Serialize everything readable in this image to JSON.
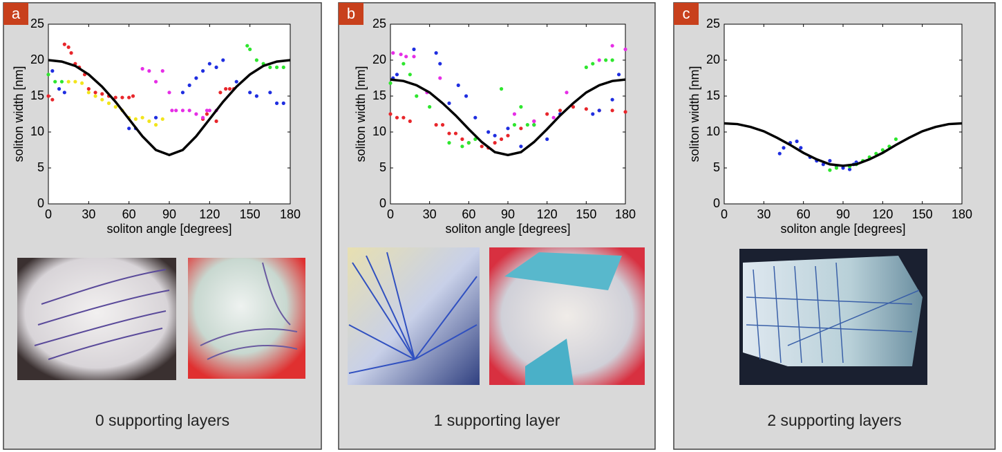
{
  "chart_data": [
    {
      "type": "scatter",
      "panel_label": "a",
      "caption": "0 supporting layers",
      "xlabel": "soliton angle [degrees]",
      "ylabel": "soliton width [nm]",
      "xlim": [
        0,
        180
      ],
      "ylim": [
        0,
        25
      ],
      "xticks": [
        0,
        30,
        60,
        90,
        120,
        150,
        180
      ],
      "yticks": [
        0,
        5,
        10,
        15,
        20,
        25
      ],
      "series": [
        {
          "color": "#e8262b",
          "x": [
            0,
            3,
            12,
            15,
            17,
            20,
            23,
            27,
            30,
            35,
            40,
            45,
            50,
            55,
            60,
            63,
            115,
            118,
            125,
            128,
            132,
            135,
            138
          ],
          "values": [
            15,
            14.5,
            22.2,
            21.8,
            21,
            19.5,
            19,
            18,
            16,
            15.5,
            15.3,
            15,
            14.8,
            14.8,
            14.8,
            15,
            11.8,
            12.5,
            11.5,
            15.5,
            16,
            16,
            16
          ]
        },
        {
          "color": "#f2e51c",
          "x": [
            15,
            20,
            25,
            30,
            35,
            40,
            45,
            50,
            55,
            60,
            65,
            70,
            75,
            80,
            85
          ],
          "values": [
            17,
            17,
            16.8,
            15.5,
            15,
            14.5,
            14,
            13.5,
            13,
            12,
            11.8,
            12,
            11.5,
            11,
            11.8
          ]
        },
        {
          "color": "#2ee62e",
          "x": [
            0,
            5,
            10,
            148,
            150,
            155,
            160,
            165,
            170,
            175
          ],
          "values": [
            18,
            17,
            17,
            22,
            21.5,
            20,
            19.5,
            19,
            19,
            19
          ]
        },
        {
          "color": "#1f2ee0",
          "x": [
            3,
            8,
            12,
            60,
            65,
            80,
            100,
            105,
            110,
            115,
            120,
            125,
            130,
            140,
            150,
            155,
            165,
            170,
            175
          ],
          "values": [
            18.5,
            16,
            15.5,
            10.5,
            10.5,
            12,
            15.5,
            16.5,
            17.5,
            18.5,
            19.5,
            19,
            20,
            17,
            15.5,
            15,
            15.5,
            14,
            14
          ]
        },
        {
          "color": "#e62ee6",
          "x": [
            70,
            75,
            80,
            85,
            90,
            92,
            95,
            100,
            105,
            110,
            115,
            118,
            120,
            125
          ],
          "values": [
            18.8,
            18.5,
            17,
            18.5,
            15.5,
            13,
            13,
            13,
            13,
            12.5,
            12,
            13,
            13,
            13
          ]
        },
        {
          "color": "#000000",
          "mode": "line",
          "x": [
            0,
            10,
            20,
            30,
            40,
            50,
            60,
            70,
            80,
            90,
            100,
            110,
            120,
            130,
            140,
            150,
            160,
            170,
            180
          ],
          "values": [
            20,
            19.8,
            19.2,
            18,
            16.3,
            14.2,
            11.8,
            9.4,
            7.5,
            6.8,
            7.5,
            9.4,
            11.8,
            14.2,
            16.3,
            18,
            19.2,
            19.8,
            20
          ]
        }
      ]
    },
    {
      "type": "scatter",
      "panel_label": "b",
      "caption": "1 supporting layer",
      "xlabel": "soliton angle [degrees]",
      "ylabel": "soliton width [nm]",
      "xlim": [
        0,
        180
      ],
      "ylim": [
        0,
        25
      ],
      "xticks": [
        0,
        30,
        60,
        90,
        120,
        150,
        180
      ],
      "yticks": [
        0,
        5,
        10,
        15,
        20,
        25
      ],
      "series": [
        {
          "color": "#e8262b",
          "x": [
            0,
            5,
            10,
            15,
            35,
            40,
            45,
            50,
            55,
            60,
            70,
            75,
            80,
            85,
            90,
            100,
            110,
            120,
            130,
            140,
            150,
            160,
            170,
            180
          ],
          "values": [
            12.5,
            12,
            12,
            11.5,
            11,
            11,
            9.8,
            9.8,
            9,
            8.5,
            8,
            7.8,
            8.5,
            9,
            9.5,
            10.5,
            11.5,
            12.5,
            13,
            13.5,
            13.2,
            13,
            13,
            12.8
          ]
        },
        {
          "color": "#1f2ee0",
          "x": [
            2,
            5,
            18,
            35,
            38,
            45,
            52,
            58,
            65,
            75,
            80,
            90,
            100,
            110,
            120,
            130,
            155,
            160,
            170,
            175
          ],
          "values": [
            17.5,
            18,
            21.5,
            21,
            19.5,
            14,
            16.5,
            15,
            12,
            10,
            9.5,
            10.5,
            8,
            11,
            9,
            12.5,
            12.5,
            13,
            14.5,
            18
          ]
        },
        {
          "color": "#2ee62e",
          "x": [
            0,
            10,
            15,
            20,
            30,
            45,
            55,
            60,
            65,
            85,
            95,
            100,
            105,
            110,
            150,
            155,
            165,
            170
          ],
          "values": [
            16.8,
            19.5,
            18,
            15,
            13.5,
            8.5,
            8,
            8.5,
            9,
            16,
            11,
            13.5,
            11,
            11,
            19,
            19.5,
            20,
            20
          ]
        },
        {
          "color": "#e62ee6",
          "x": [
            2,
            8,
            12,
            18,
            28,
            38,
            95,
            110,
            125,
            135,
            160,
            170,
            180
          ],
          "values": [
            21,
            20.8,
            20.5,
            20.5,
            15.5,
            17.5,
            12.5,
            11.5,
            12,
            15.5,
            20,
            22,
            21.5
          ]
        },
        {
          "color": "#000000",
          "mode": "line",
          "x": [
            0,
            10,
            20,
            30,
            40,
            50,
            60,
            70,
            80,
            90,
            100,
            110,
            120,
            130,
            140,
            150,
            160,
            170,
            180
          ],
          "values": [
            17.3,
            17.1,
            16.5,
            15.5,
            14,
            12.3,
            10.4,
            8.6,
            7.2,
            6.8,
            7.2,
            8.6,
            10.4,
            12.3,
            14,
            15.5,
            16.5,
            17.1,
            17.3
          ]
        }
      ]
    },
    {
      "type": "scatter",
      "panel_label": "c",
      "caption": "2 supporting layers",
      "xlabel": "soliton angle [degrees]",
      "ylabel": "soliton width [nm]",
      "xlim": [
        0,
        180
      ],
      "ylim": [
        0,
        25
      ],
      "xticks": [
        0,
        30,
        60,
        90,
        120,
        150,
        180
      ],
      "yticks": [
        0,
        5,
        10,
        15,
        20,
        25
      ],
      "series": [
        {
          "color": "#1f2ee0",
          "x": [
            42,
            45,
            50,
            55,
            58,
            65,
            70,
            75,
            80,
            85,
            90,
            95,
            98,
            100
          ],
          "values": [
            7,
            7.8,
            8.5,
            8.7,
            7.8,
            6.5,
            6,
            5.5,
            6,
            5.3,
            5,
            4.8,
            5.5,
            5.8
          ]
        },
        {
          "color": "#2ee62e",
          "x": [
            80,
            85,
            95,
            100,
            105,
            110,
            115,
            120,
            125,
            130
          ],
          "values": [
            4.7,
            5,
            5.2,
            5.5,
            6,
            6.5,
            7,
            7.5,
            8,
            9
          ]
        },
        {
          "color": "#000000",
          "mode": "line",
          "x": [
            0,
            10,
            20,
            30,
            40,
            50,
            60,
            70,
            80,
            90,
            100,
            110,
            120,
            130,
            140,
            150,
            160,
            170,
            180
          ],
          "values": [
            11.2,
            11.1,
            10.7,
            10.1,
            9.2,
            8.2,
            7.1,
            6.2,
            5.5,
            5.3,
            5.5,
            6.2,
            7.1,
            8.2,
            9.2,
            10.1,
            10.7,
            11.1,
            11.2
          ]
        }
      ]
    }
  ]
}
